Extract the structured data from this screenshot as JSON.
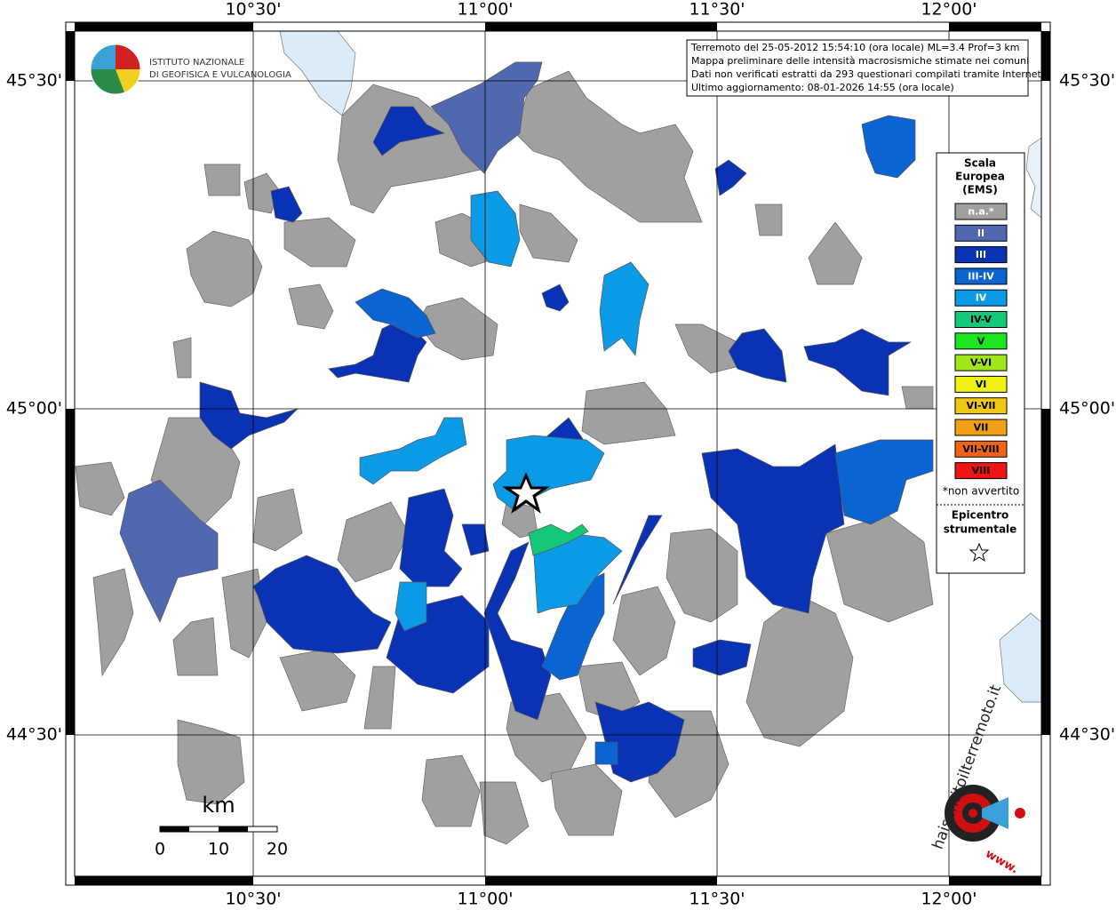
{
  "map": {
    "lon_labels": [
      "10°30'",
      "11°00'",
      "11°30'",
      "12°00'"
    ],
    "lat_labels": [
      "45°30'",
      "45°00'",
      "44°30'"
    ],
    "info": [
      "Terremoto del 25-05-2012 15:54:10 (ora locale) ML=3.4 Prof=3 km",
      "Mappa preliminare delle intensità macrosismiche stimate nei comuni",
      "Dati non verificati estratti da 293 questionari compilati tramite Internet.",
      "Ultimo aggiornamento: 08-01-2026 14:55 (ora locale)"
    ],
    "institute": [
      "ISTITUTO NAZIONALE",
      "DI GEOFISICA E VULCANOLOGIA"
    ],
    "legend": {
      "title": [
        "Scala",
        "Europea",
        "(EMS)"
      ],
      "items": [
        {
          "label": "n.a.*",
          "color": "#a0a0a0"
        },
        {
          "label": "II",
          "color": "#4f68b0"
        },
        {
          "label": "III",
          "color": "#0a32b4"
        },
        {
          "label": "III-IV",
          "color": "#0a64d2"
        },
        {
          "label": "IV",
          "color": "#0a9ae6"
        },
        {
          "label": "IV-V",
          "color": "#14c878"
        },
        {
          "label": "V",
          "color": "#1ee61e"
        },
        {
          "label": "V-VI",
          "color": "#a0e61e"
        },
        {
          "label": "VI",
          "color": "#f0f014"
        },
        {
          "label": "VI-VII",
          "color": "#f0c814"
        },
        {
          "label": "VII",
          "color": "#f0a014"
        },
        {
          "label": "VII-VIII",
          "color": "#f06414"
        },
        {
          "label": "VIII",
          "color": "#f01414"
        }
      ],
      "note": "*non avvertito",
      "epicenter": [
        "Epicentro",
        "strumentale"
      ]
    },
    "scale": {
      "unit": "km",
      "labels": [
        0,
        10,
        20
      ]
    },
    "site": {
      "name": "haisentitoilterremoto.it",
      "prefix": "www."
    }
  }
}
